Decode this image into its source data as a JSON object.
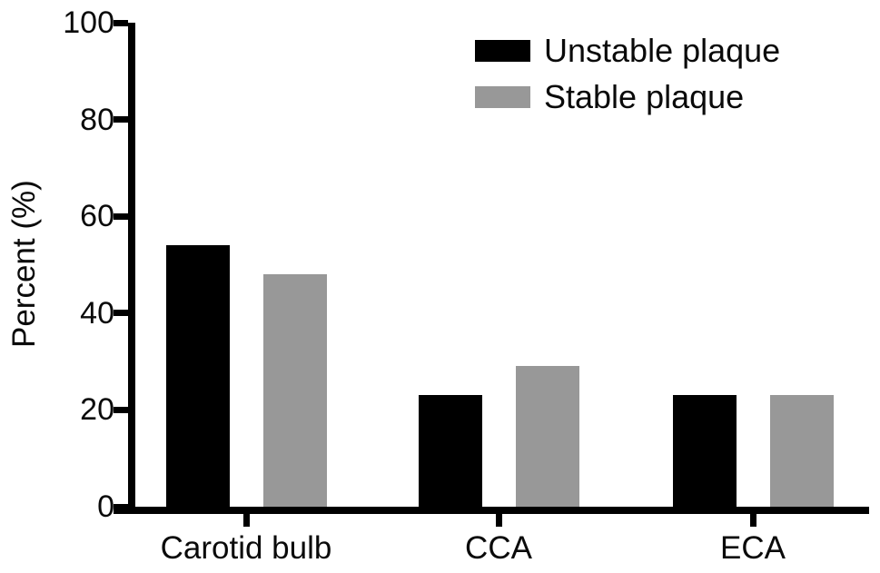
{
  "figure": {
    "background": "#ffffff",
    "text_color": "#0a0a0a",
    "axis_color": "#000000"
  },
  "chart_data": {
    "type": "bar",
    "title": "",
    "xlabel": "",
    "ylabel": "Percent (%)",
    "categories": [
      "Carotid bulb",
      "CCA",
      "ECA"
    ],
    "series": [
      {
        "name": "Unstable plaque",
        "color": "#000000",
        "values": [
          54,
          23,
          23
        ]
      },
      {
        "name": "Stable plaque",
        "color": "#989898",
        "values": [
          48,
          29,
          23
        ]
      }
    ],
    "ylim": [
      0,
      100
    ],
    "yticks": [
      0,
      20,
      40,
      60,
      80,
      100
    ],
    "grid": false,
    "legend_position": "top-right"
  }
}
